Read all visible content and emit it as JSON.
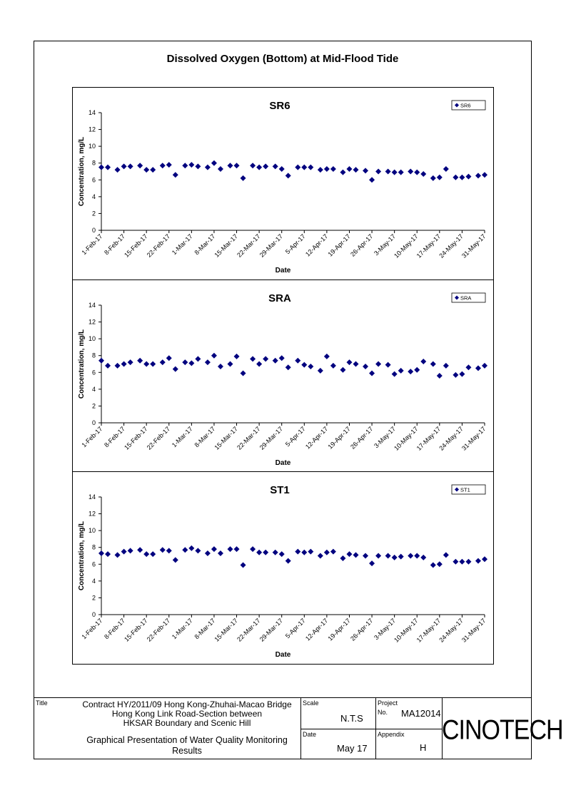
{
  "page_title": "Dissolved Oxygen (Bottom) at Mid-Flood Tide",
  "chart_data": [
    {
      "type": "scatter",
      "title": "SR6",
      "xlabel": "Date",
      "ylabel": "Concentration, mg/L",
      "ylim": [
        0,
        14
      ],
      "yticks": [
        0,
        2,
        4,
        6,
        8,
        10,
        12,
        14
      ],
      "x_tick_labels": [
        "1-Feb-17",
        "8-Feb-17",
        "15-Feb-17",
        "22-Feb-17",
        "1-Mar-17",
        "8-Mar-17",
        "15-Mar-17",
        "22-Mar-17",
        "29-Mar-17",
        "5-Apr-17",
        "12-Apr-17",
        "19-Apr-17",
        "26-Apr-17",
        "3-May-17",
        "10-May-17",
        "17-May-17",
        "24-May-17",
        "31-May-17"
      ],
      "xlim": [
        "1-Feb-17",
        "31-May-17"
      ],
      "legend_position": "top-right",
      "marker_color": "#00007f",
      "series": [
        {
          "name": "SR6",
          "x": [
            "1-Feb-17",
            "3-Feb-17",
            "6-Feb-17",
            "8-Feb-17",
            "10-Feb-17",
            "13-Feb-17",
            "15-Feb-17",
            "17-Feb-17",
            "20-Feb-17",
            "22-Feb-17",
            "24-Feb-17",
            "27-Feb-17",
            "1-Mar-17",
            "3-Mar-17",
            "6-Mar-17",
            "8-Mar-17",
            "10-Mar-17",
            "13-Mar-17",
            "15-Mar-17",
            "17-Mar-17",
            "20-Mar-17",
            "22-Mar-17",
            "24-Mar-17",
            "27-Mar-17",
            "29-Mar-17",
            "31-Mar-17",
            "3-Apr-17",
            "5-Apr-17",
            "7-Apr-17",
            "10-Apr-17",
            "12-Apr-17",
            "14-Apr-17",
            "17-Apr-17",
            "19-Apr-17",
            "21-Apr-17",
            "24-Apr-17",
            "26-Apr-17",
            "28-Apr-17",
            "1-May-17",
            "3-May-17",
            "5-May-17",
            "8-May-17",
            "10-May-17",
            "12-May-17",
            "15-May-17",
            "17-May-17",
            "19-May-17",
            "22-May-17",
            "24-May-17",
            "26-May-17",
            "29-May-17",
            "31-May-17"
          ],
          "values": [
            7.5,
            7.5,
            7.2,
            7.6,
            7.6,
            7.7,
            7.2,
            7.2,
            7.7,
            7.8,
            6.6,
            7.7,
            7.8,
            7.6,
            7.5,
            8.0,
            7.3,
            7.7,
            7.7,
            6.2,
            7.7,
            7.5,
            7.6,
            7.6,
            7.3,
            6.5,
            7.5,
            7.5,
            7.5,
            7.2,
            7.3,
            7.3,
            6.9,
            7.3,
            7.2,
            7.1,
            6.0,
            7.0,
            7.0,
            6.9,
            6.9,
            7.0,
            6.9,
            6.7,
            6.2,
            6.3,
            7.3,
            6.3,
            6.3,
            6.4,
            6.5,
            6.6
          ]
        }
      ]
    },
    {
      "type": "scatter",
      "title": "SRA",
      "xlabel": "Date",
      "ylabel": "Concentration, mg/L",
      "ylim": [
        0,
        14
      ],
      "yticks": [
        0,
        2,
        4,
        6,
        8,
        10,
        12,
        14
      ],
      "x_tick_labels": [
        "1-Feb-17",
        "8-Feb-17",
        "15-Feb-17",
        "22-Feb-17",
        "1-Mar-17",
        "8-Mar-17",
        "15-Mar-17",
        "22-Mar-17",
        "29-Mar-17",
        "5-Apr-17",
        "12-Apr-17",
        "19-Apr-17",
        "26-Apr-17",
        "3-May-17",
        "10-May-17",
        "17-May-17",
        "24-May-17",
        "31-May-17"
      ],
      "xlim": [
        "1-Feb-17",
        "31-May-17"
      ],
      "legend_position": "top-right",
      "marker_color": "#00007f",
      "series": [
        {
          "name": "SRA",
          "x": [
            "1-Feb-17",
            "3-Feb-17",
            "6-Feb-17",
            "8-Feb-17",
            "10-Feb-17",
            "13-Feb-17",
            "15-Feb-17",
            "17-Feb-17",
            "20-Feb-17",
            "22-Feb-17",
            "24-Feb-17",
            "27-Feb-17",
            "1-Mar-17",
            "3-Mar-17",
            "6-Mar-17",
            "8-Mar-17",
            "10-Mar-17",
            "13-Mar-17",
            "15-Mar-17",
            "17-Mar-17",
            "20-Mar-17",
            "22-Mar-17",
            "24-Mar-17",
            "27-Mar-17",
            "29-Mar-17",
            "31-Mar-17",
            "3-Apr-17",
            "5-Apr-17",
            "7-Apr-17",
            "10-Apr-17",
            "12-Apr-17",
            "14-Apr-17",
            "17-Apr-17",
            "19-Apr-17",
            "21-Apr-17",
            "24-Apr-17",
            "26-Apr-17",
            "28-Apr-17",
            "1-May-17",
            "3-May-17",
            "5-May-17",
            "8-May-17",
            "10-May-17",
            "12-May-17",
            "15-May-17",
            "17-May-17",
            "19-May-17",
            "22-May-17",
            "24-May-17",
            "26-May-17",
            "29-May-17",
            "31-May-17"
          ],
          "values": [
            7.4,
            6.8,
            6.8,
            7.0,
            7.2,
            7.4,
            7.0,
            7.0,
            7.2,
            7.7,
            6.4,
            7.2,
            7.1,
            7.6,
            7.2,
            8.0,
            6.7,
            7.0,
            7.9,
            5.9,
            7.6,
            7.0,
            7.6,
            7.4,
            7.7,
            6.6,
            7.4,
            6.9,
            6.7,
            6.2,
            7.9,
            6.8,
            6.3,
            7.2,
            7.0,
            6.7,
            5.9,
            7.0,
            6.9,
            5.8,
            6.2,
            6.1,
            6.3,
            7.3,
            7.0,
            5.6,
            6.8,
            5.7,
            5.8,
            6.6,
            6.5,
            6.8
          ]
        }
      ]
    },
    {
      "type": "scatter",
      "title": "ST1",
      "xlabel": "Date",
      "ylabel": "Concentration, mg/L",
      "ylim": [
        0,
        14
      ],
      "yticks": [
        0,
        2,
        4,
        6,
        8,
        10,
        12,
        14
      ],
      "x_tick_labels": [
        "1-Feb-17",
        "8-Feb-17",
        "15-Feb-17",
        "22-Feb-17",
        "1-Mar-17",
        "8-Mar-17",
        "15-Mar-17",
        "22-Mar-17",
        "29-Mar-17",
        "5-Apr-17",
        "12-Apr-17",
        "19-Apr-17",
        "26-Apr-17",
        "3-May-17",
        "10-May-17",
        "17-May-17",
        "24-May-17",
        "31-May-17"
      ],
      "xlim": [
        "1-Feb-17",
        "31-May-17"
      ],
      "legend_position": "top-right",
      "marker_color": "#00007f",
      "series": [
        {
          "name": "ST1",
          "x": [
            "1-Feb-17",
            "3-Feb-17",
            "6-Feb-17",
            "8-Feb-17",
            "10-Feb-17",
            "13-Feb-17",
            "15-Feb-17",
            "17-Feb-17",
            "20-Feb-17",
            "22-Feb-17",
            "24-Feb-17",
            "27-Feb-17",
            "1-Mar-17",
            "3-Mar-17",
            "6-Mar-17",
            "8-Mar-17",
            "10-Mar-17",
            "13-Mar-17",
            "15-Mar-17",
            "17-Mar-17",
            "20-Mar-17",
            "22-Mar-17",
            "24-Mar-17",
            "27-Mar-17",
            "29-Mar-17",
            "31-Mar-17",
            "3-Apr-17",
            "5-Apr-17",
            "7-Apr-17",
            "10-Apr-17",
            "12-Apr-17",
            "14-Apr-17",
            "17-Apr-17",
            "19-Apr-17",
            "21-Apr-17",
            "24-Apr-17",
            "26-Apr-17",
            "28-Apr-17",
            "1-May-17",
            "3-May-17",
            "5-May-17",
            "8-May-17",
            "10-May-17",
            "12-May-17",
            "15-May-17",
            "17-May-17",
            "19-May-17",
            "22-May-17",
            "24-May-17",
            "26-May-17",
            "29-May-17",
            "31-May-17"
          ],
          "values": [
            7.3,
            7.2,
            7.1,
            7.5,
            7.6,
            7.7,
            7.2,
            7.2,
            7.7,
            7.6,
            6.5,
            7.7,
            7.9,
            7.6,
            7.3,
            7.8,
            7.3,
            7.8,
            7.8,
            5.9,
            7.8,
            7.4,
            7.4,
            7.4,
            7.2,
            6.4,
            7.5,
            7.4,
            7.5,
            7.0,
            7.4,
            7.5,
            6.7,
            7.2,
            7.1,
            7.0,
            6.1,
            7.0,
            7.0,
            6.8,
            6.9,
            7.0,
            7.0,
            6.8,
            5.9,
            6.0,
            7.1,
            6.3,
            6.3,
            6.3,
            6.4,
            6.6
          ]
        }
      ]
    }
  ],
  "title_block": {
    "title_label": "Title",
    "title_lines": [
      "Contract HY/2011/09 Hong Kong-Zhuhai-Macao Bridge",
      "Hong Kong Link Road-Section between",
      "HKSAR Boundary and Scenic Hill"
    ],
    "subtitle_lines": [
      "Graphical Presentation of Water Quality Monitoring",
      "Results"
    ],
    "scale_label": "Scale",
    "scale_value": "N.T.S",
    "date_label": "Date",
    "date_value": "May 17",
    "project_label": "Project",
    "project_no_label": "No.",
    "project_no_value": "MA12014",
    "appendix_label": "Appendix",
    "appendix_value": "H",
    "logo_text": "CINOTECH"
  }
}
